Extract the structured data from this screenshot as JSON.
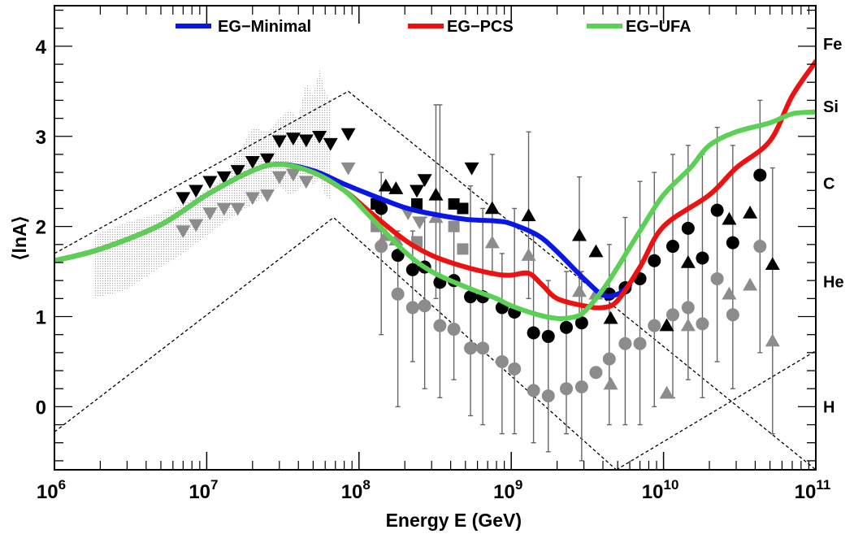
{
  "chart_data": {
    "type": "scatter",
    "title": "",
    "xlabel": "Energy E (GeV)",
    "ylabel": "⟨lnA⟩",
    "x_scale": "log",
    "xlim": [
      1000000.0,
      100000000000.0
    ],
    "ylim": [
      -0.7,
      4.45
    ],
    "x_ticks": [
      {
        "base": "10",
        "exp": "6",
        "value": 1000000.0
      },
      {
        "base": "10",
        "exp": "7",
        "value": 10000000.0
      },
      {
        "base": "10",
        "exp": "8",
        "value": 100000000.0
      },
      {
        "base": "10",
        "exp": "9",
        "value": 1000000000.0
      },
      {
        "base": "10",
        "exp": "10",
        "value": 10000000000.0
      },
      {
        "base": "10",
        "exp": "11",
        "value": 100000000000.0
      }
    ],
    "y_ticks": [
      {
        "label": "0",
        "value": 0
      },
      {
        "label": "1",
        "value": 1
      },
      {
        "label": "2",
        "value": 2
      },
      {
        "label": "3",
        "value": 3
      },
      {
        "label": "4",
        "value": 4
      }
    ],
    "element_labels": [
      {
        "label": "Fe",
        "value": 4.025
      },
      {
        "label": "Si",
        "value": 3.33
      },
      {
        "label": "C",
        "value": 2.48
      },
      {
        "label": "He",
        "value": 1.39
      },
      {
        "label": "H",
        "value": 0.0
      }
    ],
    "grid": false,
    "legend_position": "top",
    "series": [
      {
        "name": "EG−Minimal",
        "color": "#0a16e6",
        "width": 6,
        "points": [
          [
            1000000.0,
            1.62
          ],
          [
            2000000.0,
            1.75
          ],
          [
            5000000.0,
            2.02
          ],
          [
            10000000.0,
            2.35
          ],
          [
            20000000.0,
            2.62
          ],
          [
            30000000.0,
            2.69
          ],
          [
            50000000.0,
            2.62
          ],
          [
            80000000.0,
            2.47
          ],
          [
            120000000.0,
            2.35
          ],
          [
            200000000.0,
            2.21
          ],
          [
            300000000.0,
            2.14
          ],
          [
            500000000.0,
            2.08
          ],
          [
            800000000.0,
            2.06
          ],
          [
            1000000000.0,
            2.03
          ],
          [
            1500000000.0,
            1.9
          ],
          [
            2000000000.0,
            1.72
          ],
          [
            3000000000.0,
            1.42
          ],
          [
            4000000000.0,
            1.24
          ],
          [
            5000000000.0,
            1.25
          ],
          [
            6000000000.0,
            1.35
          ]
        ]
      },
      {
        "name": "EG−PCS",
        "color": "#ee1111",
        "width": 6,
        "points": [
          [
            1000000.0,
            1.62
          ],
          [
            2000000.0,
            1.75
          ],
          [
            5000000.0,
            2.02
          ],
          [
            10000000.0,
            2.35
          ],
          [
            20000000.0,
            2.62
          ],
          [
            30000000.0,
            2.69
          ],
          [
            50000000.0,
            2.6
          ],
          [
            80000000.0,
            2.4
          ],
          [
            120000000.0,
            2.15
          ],
          [
            200000000.0,
            1.85
          ],
          [
            300000000.0,
            1.68
          ],
          [
            500000000.0,
            1.55
          ],
          [
            800000000.0,
            1.47
          ],
          [
            1000000000.0,
            1.46
          ],
          [
            1300000000.0,
            1.48
          ],
          [
            1600000000.0,
            1.35
          ],
          [
            2000000000.0,
            1.2
          ],
          [
            3000000000.0,
            1.12
          ],
          [
            4000000000.0,
            1.1
          ],
          [
            5000000000.0,
            1.18
          ],
          [
            7000000000.0,
            1.55
          ],
          [
            10000000000.0,
            2.0
          ],
          [
            20000000000.0,
            2.35
          ],
          [
            30000000000.0,
            2.65
          ],
          [
            50000000000.0,
            2.95
          ],
          [
            70000000000.0,
            3.45
          ],
          [
            100000000000.0,
            3.83
          ]
        ]
      },
      {
        "name": "EG−UFA",
        "color": "#5ad154",
        "width": 6,
        "points": [
          [
            1000000.0,
            1.62
          ],
          [
            2000000.0,
            1.75
          ],
          [
            5000000.0,
            2.02
          ],
          [
            10000000.0,
            2.35
          ],
          [
            20000000.0,
            2.62
          ],
          [
            30000000.0,
            2.69
          ],
          [
            50000000.0,
            2.6
          ],
          [
            80000000.0,
            2.4
          ],
          [
            120000000.0,
            2.1
          ],
          [
            200000000.0,
            1.72
          ],
          [
            300000000.0,
            1.5
          ],
          [
            500000000.0,
            1.33
          ],
          [
            800000000.0,
            1.2
          ],
          [
            1000000000.0,
            1.12
          ],
          [
            1500000000.0,
            1.02
          ],
          [
            2000000000.0,
            0.98
          ],
          [
            2500000000.0,
            0.99
          ],
          [
            3000000000.0,
            1.05
          ],
          [
            4000000000.0,
            1.3
          ],
          [
            5000000000.0,
            1.55
          ],
          [
            7000000000.0,
            1.95
          ],
          [
            10000000000.0,
            2.35
          ],
          [
            15000000000.0,
            2.65
          ],
          [
            20000000000.0,
            2.9
          ],
          [
            30000000000.0,
            3.05
          ],
          [
            50000000000.0,
            3.15
          ],
          [
            70000000000.0,
            3.25
          ],
          [
            100000000000.0,
            3.27
          ]
        ]
      }
    ],
    "dashed_band": {
      "upper": [
        [
          1000000.0,
          1.7
        ],
        [
          85000000.0,
          3.5
        ],
        [
          100000000000.0,
          -0.7
        ]
      ],
      "lower": [
        [
          1000000.0,
          -0.28
        ],
        [
          68000000.0,
          2.1
        ],
        [
          4900000000.0,
          -0.7
        ]
      ],
      "lower_right": [
        [
          4900000000.0,
          -0.7
        ],
        [
          100000000000.0,
          0.62
        ]
      ]
    },
    "shaded_band": {
      "upper": [
        [
          1800000.0,
          1.9
        ],
        [
          3000000.0,
          2.05
        ],
        [
          5000000.0,
          2.15
        ],
        [
          7000000.0,
          2.25
        ],
        [
          10000000.0,
          2.4
        ],
        [
          13000000.0,
          2.55
        ],
        [
          16000000.0,
          2.8
        ],
        [
          20000000.0,
          3.1
        ],
        [
          25000000.0,
          3.05
        ],
        [
          30000000.0,
          3.2
        ],
        [
          35000000.0,
          3.3
        ],
        [
          40000000.0,
          3.2
        ],
        [
          45000000.0,
          3.6
        ],
        [
          50000000.0,
          3.45
        ],
        [
          55000000.0,
          3.75
        ],
        [
          60000000.0,
          3.5
        ],
        [
          65000000.0,
          3.4
        ]
      ],
      "lower": [
        [
          1800000.0,
          1.2
        ],
        [
          3000000.0,
          1.3
        ],
        [
          5000000.0,
          1.55
        ],
        [
          7000000.0,
          1.7
        ],
        [
          10000000.0,
          1.9
        ],
        [
          13000000.0,
          2.05
        ],
        [
          16000000.0,
          2.15
        ],
        [
          20000000.0,
          2.25
        ],
        [
          25000000.0,
          2.35
        ],
        [
          30000000.0,
          2.45
        ],
        [
          35000000.0,
          2.35
        ],
        [
          40000000.0,
          2.4
        ],
        [
          45000000.0,
          2.55
        ],
        [
          50000000.0,
          2.45
        ],
        [
          55000000.0,
          2.55
        ],
        [
          60000000.0,
          2.35
        ],
        [
          65000000.0,
          2.3
        ]
      ]
    },
    "markers": {
      "black_triangle_down": [
        [
          7000000.0,
          2.32
        ],
        [
          8500000.0,
          2.4
        ],
        [
          10500000.0,
          2.5
        ],
        [
          13000000.0,
          2.55
        ],
        [
          16000000.0,
          2.62
        ],
        [
          20000000.0,
          2.72
        ],
        [
          25000000.0,
          2.75
        ],
        [
          30000000.0,
          2.95
        ],
        [
          37000000.0,
          2.98
        ],
        [
          45000000.0,
          2.96
        ],
        [
          55000000.0,
          3.0
        ],
        [
          65000000.0,
          2.92
        ],
        [
          85000000.0,
          3.03
        ],
        [
          240000000.0,
          2.4
        ],
        [
          270000000.0,
          2.52
        ],
        [
          550000000.0,
          2.65
        ]
      ],
      "gray_triangle_down": [
        [
          7000000.0,
          1.95
        ],
        [
          8500000.0,
          2.02
        ],
        [
          10500000.0,
          2.15
        ],
        [
          13000000.0,
          2.2
        ],
        [
          16000000.0,
          2.2
        ],
        [
          20000000.0,
          2.32
        ],
        [
          25000000.0,
          2.35
        ],
        [
          30000000.0,
          2.55
        ],
        [
          37000000.0,
          2.58
        ],
        [
          45000000.0,
          2.5
        ],
        [
          85000000.0,
          2.65
        ],
        [
          140000000.0,
          2.25
        ],
        [
          210000000.0,
          2.15
        ],
        [
          250000000.0,
          2.05
        ]
      ],
      "black_square": [
        [
          130000000.0,
          2.25
        ],
        [
          240000000.0,
          2.25
        ],
        [
          420000000.0,
          2.25
        ],
        [
          480000000.0,
          2.2
        ]
      ],
      "gray_square": [
        [
          130000000.0,
          2.0
        ],
        [
          240000000.0,
          1.83
        ],
        [
          420000000.0,
          2.0
        ],
        [
          480000000.0,
          1.75
        ]
      ],
      "black_triangle_up": [
        [
          150000000.0,
          2.45
        ],
        [
          175000000.0,
          2.42
        ],
        [
          320000000.0,
          2.35
        ],
        [
          750000000.0,
          2.2
        ],
        [
          1300000000.0,
          2.12
        ],
        [
          2800000000.0,
          1.9
        ],
        [
          3600000000.0,
          1.72
        ],
        [
          4500000000.0,
          0.98
        ],
        [
          10500000000.0,
          0.9
        ],
        [
          14500000000.0,
          1.6
        ],
        [
          27000000000.0,
          2.08
        ],
        [
          37000000000.0,
          2.15
        ],
        [
          52000000000.0,
          1.58
        ]
      ],
      "gray_triangle_up": [
        [
          150000000.0,
          1.9
        ],
        [
          175000000.0,
          1.85
        ],
        [
          320000000.0,
          2.1
        ],
        [
          750000000.0,
          1.82
        ],
        [
          1300000000.0,
          1.68
        ],
        [
          2800000000.0,
          1.28
        ],
        [
          3600000000.0,
          1.25
        ],
        [
          4500000000.0,
          0.25
        ],
        [
          10500000000.0,
          0.15
        ],
        [
          14500000000.0,
          0.9
        ],
        [
          27000000000.0,
          1.25
        ],
        [
          37000000000.0,
          1.35
        ],
        [
          52000000000.0,
          0.73
        ]
      ],
      "black_circle": [
        [
          140000000.0,
          2.2
        ],
        [
          180000000.0,
          1.68
        ],
        [
          225000000.0,
          1.52
        ],
        [
          270000000.0,
          1.55
        ],
        [
          340000000.0,
          1.38
        ],
        [
          420000000.0,
          1.4
        ],
        [
          540000000.0,
          1.22
        ],
        [
          650000000.0,
          1.22
        ],
        [
          870000000.0,
          1.1
        ],
        [
          1050000000.0,
          1.05
        ],
        [
          1400000000.0,
          0.82
        ],
        [
          1750000000.0,
          0.78
        ],
        [
          2300000000.0,
          0.88
        ],
        [
          2900000000.0,
          0.93
        ],
        [
          4400000000.0,
          1.25
        ],
        [
          5600000000.0,
          1.32
        ],
        [
          7000000000.0,
          1.42
        ],
        [
          8700000000.0,
          1.62
        ],
        [
          11500000000.0,
          1.78
        ],
        [
          14500000000.0,
          1.98
        ],
        [
          18000000000.0,
          1.65
        ],
        [
          22500000000.0,
          2.18
        ],
        [
          28500000000.0,
          1.82
        ],
        [
          43000000000.0,
          2.57
        ]
      ],
      "gray_circle": [
        [
          140000000.0,
          1.78
        ],
        [
          180000000.0,
          1.25
        ],
        [
          225000000.0,
          1.1
        ],
        [
          270000000.0,
          1.12
        ],
        [
          340000000.0,
          0.9
        ],
        [
          420000000.0,
          0.86
        ],
        [
          540000000.0,
          0.65
        ],
        [
          650000000.0,
          0.65
        ],
        [
          870000000.0,
          0.5
        ],
        [
          1050000000.0,
          0.42
        ],
        [
          1400000000.0,
          0.18
        ],
        [
          1750000000.0,
          0.12
        ],
        [
          2300000000.0,
          0.2
        ],
        [
          2900000000.0,
          0.22
        ],
        [
          3600000000.0,
          0.38
        ],
        [
          4400000000.0,
          0.53
        ],
        [
          5600000000.0,
          0.7
        ],
        [
          7000000000.0,
          0.7
        ],
        [
          8700000000.0,
          0.9
        ],
        [
          11500000000.0,
          1.02
        ],
        [
          14500000000.0,
          1.1
        ],
        [
          18000000000.0,
          0.92
        ],
        [
          22500000000.0,
          1.42
        ],
        [
          28500000000.0,
          1.02
        ],
        [
          43000000000.0,
          1.78
        ]
      ]
    },
    "error_bars": [
      {
        "x": 140000000.0,
        "lo": 0.8,
        "hi": 2.6,
        "color": "#000"
      },
      {
        "x": 180000000.0,
        "lo": 0.0,
        "hi": 1.95,
        "color": "#000"
      },
      {
        "x": 225000000.0,
        "lo": 0.5,
        "hi": 1.95,
        "color": "#000"
      },
      {
        "x": 270000000.0,
        "lo": 0.2,
        "hi": 2.1,
        "color": "#000"
      },
      {
        "x": 340000000.0,
        "lo": 0.1,
        "hi": 3.35,
        "color": "#000"
      },
      {
        "x": 420000000.0,
        "lo": 0.3,
        "hi": 2.0,
        "color": "#000"
      },
      {
        "x": 540000000.0,
        "lo": -0.1,
        "hi": 2.45,
        "color": "#000"
      },
      {
        "x": 650000000.0,
        "lo": -0.2,
        "hi": 2.2,
        "color": "#000"
      },
      {
        "x": 870000000.0,
        "lo": -0.3,
        "hi": 1.7,
        "color": "#000"
      },
      {
        "x": 1050000000.0,
        "lo": -0.3,
        "hi": 2.2,
        "color": "#000"
      },
      {
        "x": 1400000000.0,
        "lo": -0.4,
        "hi": 1.9,
        "color": "#000"
      },
      {
        "x": 1750000000.0,
        "lo": -0.5,
        "hi": 1.4,
        "color": "#000"
      },
      {
        "x": 2300000000.0,
        "lo": -0.3,
        "hi": 1.5,
        "color": "#000"
      },
      {
        "x": 2900000000.0,
        "lo": -0.6,
        "hi": 1.5,
        "color": "#000"
      },
      {
        "x": 4400000000.0,
        "lo": -0.2,
        "hi": 1.8,
        "color": "#000"
      },
      {
        "x": 5600000000.0,
        "lo": -0.2,
        "hi": 2.1,
        "color": "#000"
      },
      {
        "x": 7000000000.0,
        "lo": -0.2,
        "hi": 2.5,
        "color": "#000"
      },
      {
        "x": 8700000000.0,
        "lo": 0.0,
        "hi": 2.6,
        "color": "#000"
      },
      {
        "x": 11500000000.0,
        "lo": 0.1,
        "hi": 2.8,
        "color": "#000"
      },
      {
        "x": 14500000000.0,
        "lo": 0.3,
        "hi": 2.9,
        "color": "#000"
      },
      {
        "x": 18000000000.0,
        "lo": 0.1,
        "hi": 2.8,
        "color": "#000"
      },
      {
        "x": 22500000000.0,
        "lo": 0.5,
        "hi": 3.1,
        "color": "#000"
      },
      {
        "x": 28500000000.0,
        "lo": 0.2,
        "hi": 2.9,
        "color": "#000"
      },
      {
        "x": 43000000000.0,
        "lo": 0.6,
        "hi": 3.4,
        "color": "#000"
      },
      {
        "x": 52000000000.0,
        "lo": -0.3,
        "hi": 2.65,
        "color": "#000"
      },
      {
        "x": 320000000.0,
        "lo": 1.2,
        "hi": 3.35,
        "color": "#000"
      },
      {
        "x": 750000000.0,
        "lo": 1.5,
        "hi": 2.8,
        "color": "#000"
      },
      {
        "x": 1300000000.0,
        "lo": 1.2,
        "hi": 3.05,
        "color": "#000"
      },
      {
        "x": 2800000000.0,
        "lo": 0.9,
        "hi": 2.55,
        "color": "#000"
      }
    ]
  },
  "legend": {
    "items": [
      {
        "name": "EG−Minimal",
        "color": "#0a16e6"
      },
      {
        "name": "EG−PCS",
        "color": "#ee1111"
      },
      {
        "name": "EG−UFA",
        "color": "#5ad154"
      }
    ]
  }
}
